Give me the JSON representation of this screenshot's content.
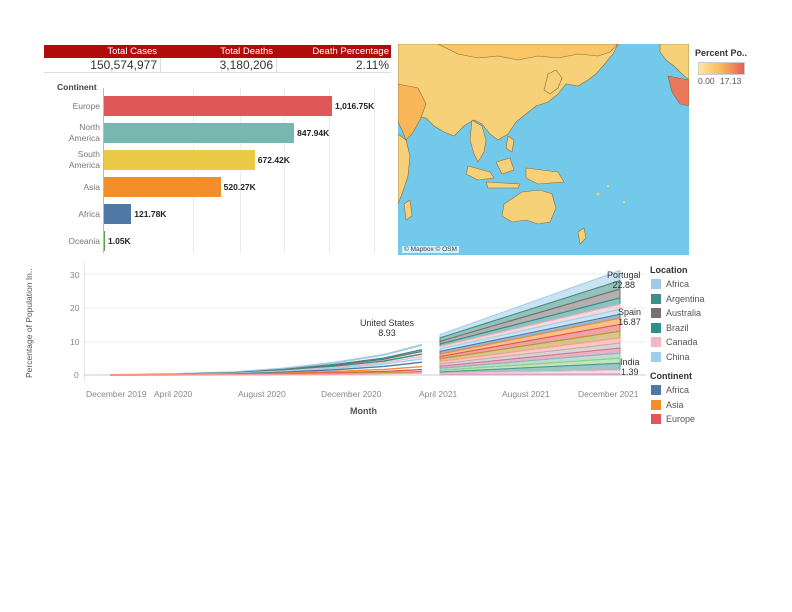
{
  "kpi": {
    "headers": [
      "Total Cases",
      "Total Deaths",
      "Death Percentage"
    ],
    "values": [
      "150,574,977",
      "3,180,206",
      "2.11%"
    ],
    "header_color": "#b10c0c"
  },
  "bar_chart": {
    "dimension_label": "Continent",
    "categories": [
      {
        "label_lines": [
          "Europe"
        ],
        "value_label": "1,016.75K",
        "value": 1016.75,
        "color": "#e15759"
      },
      {
        "label_lines": [
          "North",
          "America"
        ],
        "value_label": "847.94K",
        "value": 847.94,
        "color": "#76b7b2"
      },
      {
        "label_lines": [
          "South",
          "America"
        ],
        "value_label": "672.42K",
        "value": 672.42,
        "color": "#edc948"
      },
      {
        "label_lines": [
          "Asia"
        ],
        "value_label": "520.27K",
        "value": 520.27,
        "color": "#f28e2b"
      },
      {
        "label_lines": [
          "Africa"
        ],
        "value_label": "121.78K",
        "value": 121.78,
        "color": "#4e79a7"
      },
      {
        "label_lines": [
          "Oceania"
        ],
        "value_label": "1.05K",
        "value": 1.05,
        "color": "#59a14f"
      }
    ]
  },
  "map": {
    "attribution": "© Mapbox © OSM",
    "ocean_color": "#73c9ea",
    "land_color": "#f6d17a",
    "legend_title": "Percent Po..",
    "legend_min": "0.00",
    "legend_max": "17.13"
  },
  "line_chart": {
    "y_axis_label": "Percentage of Population In..",
    "x_axis_label": "Month",
    "y_ticks": [
      "30",
      "20",
      "10",
      "0"
    ],
    "x_ticks": [
      "December 2019",
      "April 2020",
      "August 2020",
      "December 2020",
      "April 2021",
      "August 2021",
      "December 2021"
    ],
    "annotations": [
      {
        "name": "United States",
        "value": "8.93"
      },
      {
        "name": "Portugal",
        "value": "22.88"
      },
      {
        "name": "Spain",
        "value": "16.87"
      },
      {
        "name": "India",
        "value": "1.39"
      }
    ]
  },
  "legend": {
    "location_title": "Location",
    "locations": [
      {
        "name": "Africa",
        "color": "#a0cbe8"
      },
      {
        "name": "Argentina",
        "color": "#3b8f86"
      },
      {
        "name": "Australia",
        "color": "#79706e"
      },
      {
        "name": "Brazil",
        "color": "#2f8f8a"
      },
      {
        "name": "Canada",
        "color": "#f4b6c2"
      },
      {
        "name": "China",
        "color": "#9dd0ea"
      }
    ],
    "continent_title": "Continent",
    "continents": [
      {
        "name": "Africa",
        "color": "#4e79a7"
      },
      {
        "name": "Asia",
        "color": "#f28e2b"
      },
      {
        "name": "Europe",
        "color": "#e15759"
      }
    ]
  },
  "chart_data": [
    {
      "type": "bar",
      "title": "",
      "xlabel": "",
      "ylabel": "Continent",
      "categories": [
        "Europe",
        "North America",
        "South America",
        "Asia",
        "Africa",
        "Oceania"
      ],
      "values": [
        1016750,
        847940,
        672420,
        520270,
        121780,
        1050
      ],
      "grid": true
    },
    {
      "type": "area",
      "title": "",
      "xlabel": "Month",
      "ylabel": "Percentage of Population In..",
      "ylim": [
        0,
        30
      ],
      "x": [
        "December 2019",
        "April 2020",
        "August 2020",
        "December 2020",
        "April 2021",
        "August 2021",
        "December 2021"
      ],
      "series": [
        {
          "name": "United States",
          "values": [
            0,
            0.2,
            1.5,
            5,
            8.93,
            null,
            null
          ]
        },
        {
          "name": "Portugal",
          "values": [
            null,
            null,
            null,
            null,
            12,
            17,
            22.88
          ]
        },
        {
          "name": "Spain",
          "values": [
            null,
            null,
            null,
            null,
            9,
            13,
            16.87
          ]
        },
        {
          "name": "India",
          "values": [
            null,
            null,
            null,
            null,
            0.5,
            1,
            1.39
          ]
        }
      ]
    }
  ]
}
